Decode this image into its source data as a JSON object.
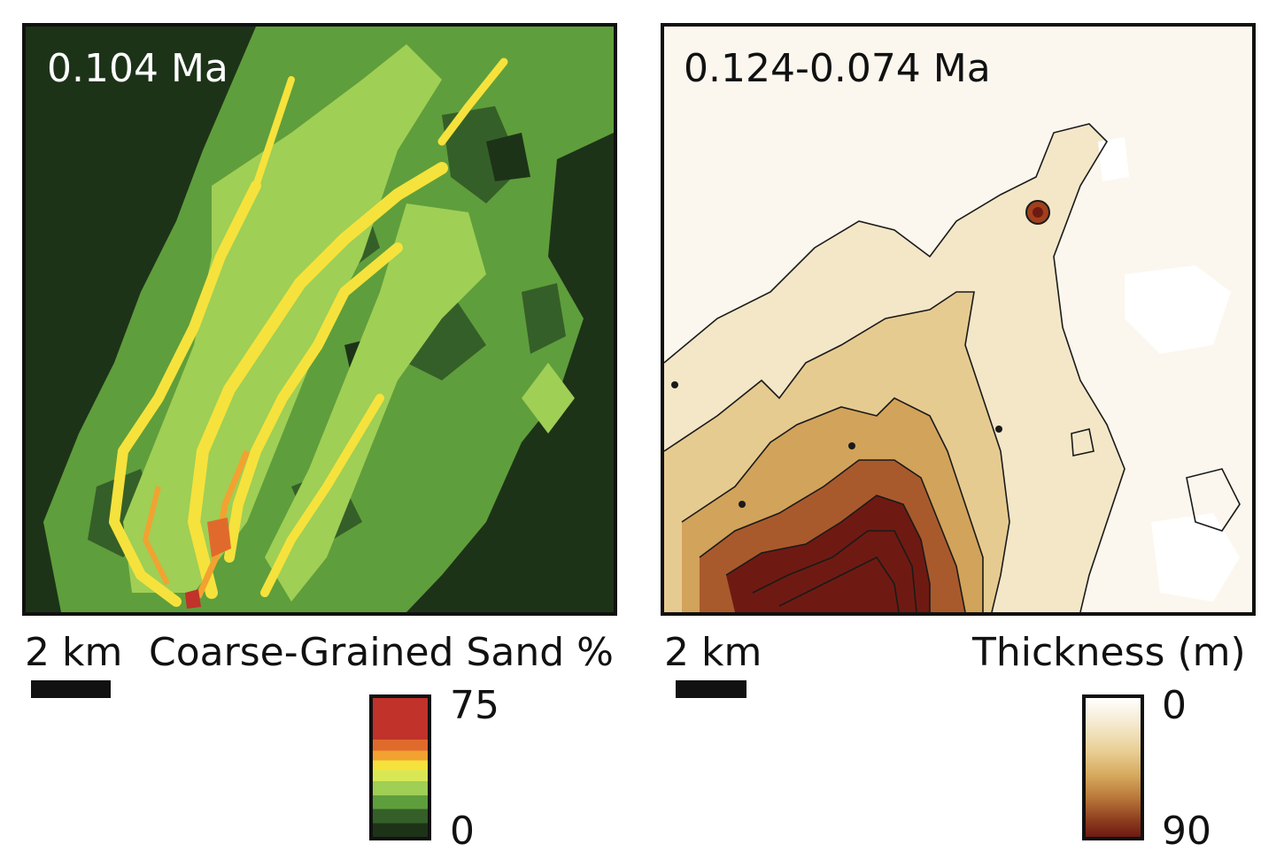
{
  "left_panel": {
    "age": "0.104 Ma",
    "scale_label": "2 km",
    "legend_title": "Coarse-Grained Sand %",
    "colorbar_max": "75",
    "colorbar_min": "0",
    "colors": [
      "#1d3318",
      "#355f28",
      "#5f9e3c",
      "#9fcf55",
      "#d8e855",
      "#f6e23c",
      "#f2a230",
      "#e06a2c",
      "#c0322a"
    ]
  },
  "right_panel": {
    "age": "0.124-0.074 Ma",
    "scale_label": "2 km",
    "legend_title": "Thickness (m)",
    "colorbar_min": "0",
    "colorbar_max": "90",
    "colors": [
      "#ffffff",
      "#f5ead0",
      "#e9cf95",
      "#d6a85c",
      "#b9773a",
      "#8e3d1f",
      "#6e1a12"
    ]
  }
}
